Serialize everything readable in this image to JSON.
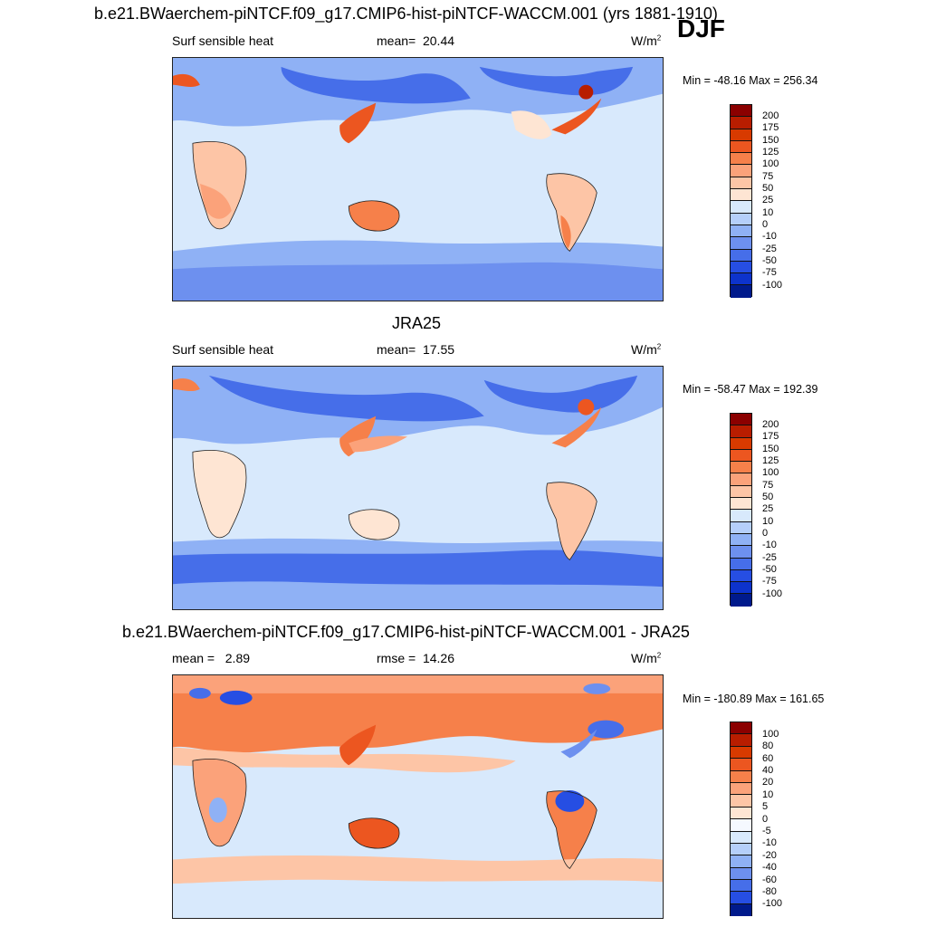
{
  "case_title": "b.e21.BWaerchem-piNTCF.f09_g17.CMIP6-hist-piNTCF-WACCM.001 (yrs 1881-1910)",
  "season": "DJF",
  "panels": [
    {
      "variable": "Surf sensible heat",
      "stat_label": "mean=",
      "stat_value": "20.44",
      "units": "W/m",
      "units_sup": "2",
      "minmax": "Min = -48.16 Max = 256.34",
      "colorbar_labels": [
        "200",
        "175",
        "150",
        "125",
        "100",
        "75",
        "50",
        "25",
        "10",
        "0",
        "-10",
        "-25",
        "-50",
        "-75",
        "-100"
      ]
    },
    {
      "title": "JRA25",
      "variable": "Surf sensible heat",
      "stat_label": "mean=",
      "stat_value": "17.55",
      "units": "W/m",
      "units_sup": "2",
      "minmax": "Min = -58.47 Max = 192.39",
      "colorbar_labels": [
        "200",
        "175",
        "150",
        "125",
        "100",
        "75",
        "50",
        "25",
        "10",
        "0",
        "-10",
        "-25",
        "-50",
        "-75",
        "-100"
      ]
    },
    {
      "title": "b.e21.BWaerchem-piNTCF.f09_g17.CMIP6-hist-piNTCF-WACCM.001 - JRA25",
      "stat_label": "mean =",
      "stat_value": "2.89",
      "rmse_label": "rmse =",
      "rmse_value": "14.26",
      "units": "W/m",
      "units_sup": "2",
      "minmax": "Min = -180.89 Max = 161.65",
      "colorbar_labels": [
        "100",
        "80",
        "60",
        "40",
        "20",
        "10",
        "5",
        "0",
        "-5",
        "-10",
        "-20",
        "-40",
        "-60",
        "-80",
        "-100"
      ]
    }
  ],
  "colors": {
    "abs_scale": [
      "#8b0000",
      "#b81d00",
      "#d83a00",
      "#ec5620",
      "#f6804a",
      "#fba27a",
      "#fdc5a6",
      "#fee5d3",
      "#d8e9fc",
      "#b5cffa",
      "#8fb1f5",
      "#6d90ef",
      "#466ee9",
      "#264ee3",
      "#0d33cc",
      "#001a8c"
    ],
    "diff_scale": [
      "#8b0000",
      "#b81d00",
      "#d83a00",
      "#ec5620",
      "#f6804a",
      "#fba27a",
      "#fdc5a6",
      "#fee5d3",
      "#f5f9ff",
      "#d8e9fc",
      "#b5cffa",
      "#8fb1f5",
      "#6d90ef",
      "#466ee9",
      "#264ee3",
      "#001a8c"
    ]
  }
}
